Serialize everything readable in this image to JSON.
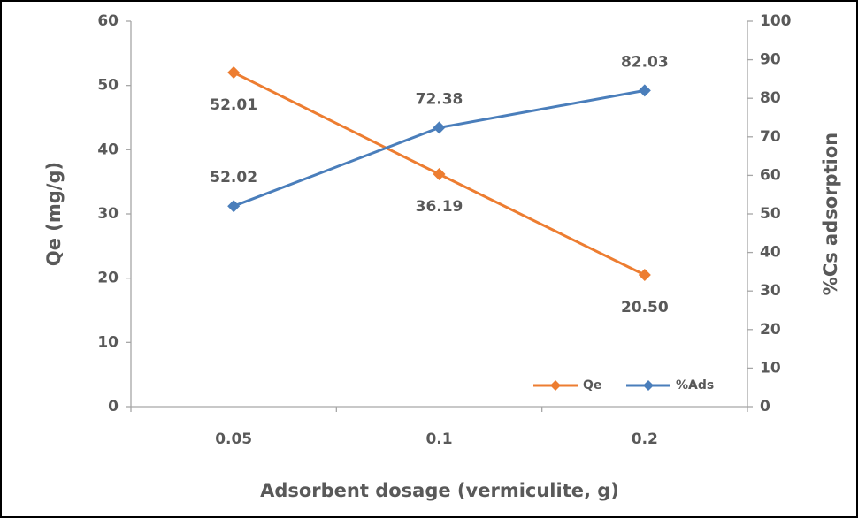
{
  "chart_data": {
    "type": "line",
    "x_label": "Adsorbent dosage (vermiculite, g)",
    "y_label": "Qe (mg/g)",
    "y2_label": "%Cs adsorption",
    "categories": [
      "0.05",
      "0.1",
      "0.2"
    ],
    "series": [
      {
        "name": "Qe",
        "color": "#ed7d31",
        "values": [
          52.01,
          36.19,
          20.5
        ],
        "value_labels": [
          "52.01",
          "36.19",
          "20.50"
        ]
      },
      {
        "name": "%Ads",
        "color": "#4a7ebb",
        "axis": "y2",
        "values": [
          52.02,
          72.38,
          82.03
        ],
        "value_labels": [
          "52.02",
          "72.38",
          "82.03"
        ]
      }
    ],
    "ylim": [
      0,
      60
    ],
    "yticks": [
      0,
      10,
      20,
      30,
      40,
      50,
      60
    ],
    "y2lim": [
      0,
      100
    ],
    "y2ticks": [
      0,
      10,
      20,
      30,
      40,
      50,
      60,
      70,
      80,
      90,
      100
    ],
    "grid": false,
    "legend": "lower right"
  }
}
